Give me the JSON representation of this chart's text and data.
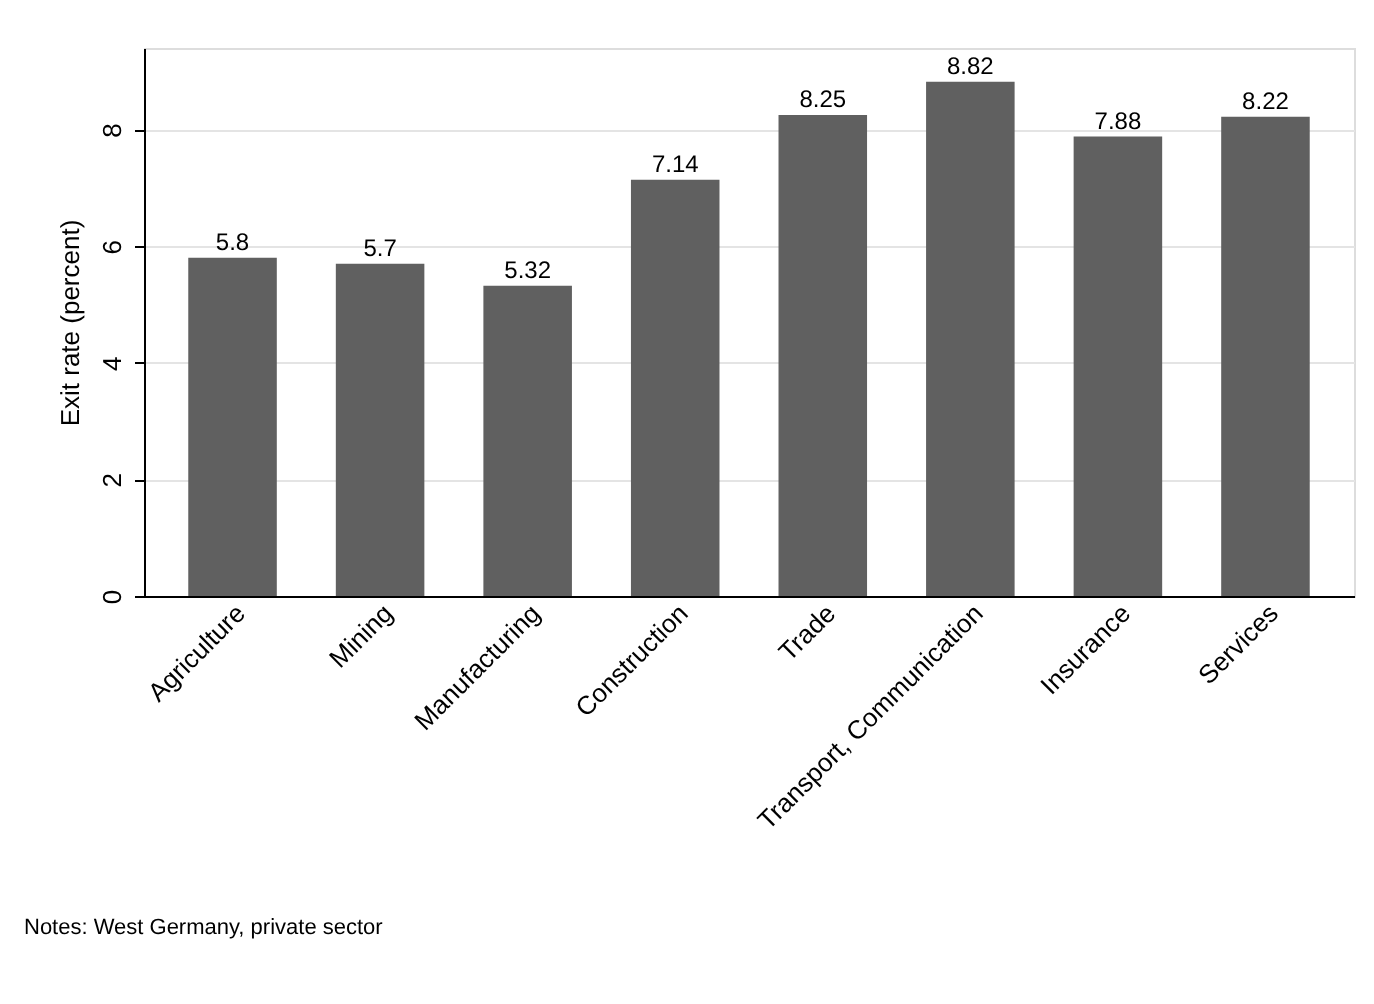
{
  "chart_data": {
    "type": "bar",
    "ylabel": "Exit rate (percent)",
    "categories": [
      "Agriculture",
      "Mining",
      "Manufacturing",
      "Construction",
      "Trade",
      "Transport, Communication",
      "Insurance",
      "Services"
    ],
    "values": [
      5.8,
      5.7,
      5.32,
      7.14,
      8.25,
      8.82,
      7.88,
      8.22
    ],
    "color": "#606060",
    "ylim": [
      0,
      9.4
    ],
    "yticks": [
      0,
      2,
      4,
      6,
      8
    ],
    "grid": "y",
    "data_labels": true,
    "annotations": [
      "Notes: West Germany, private sector"
    ]
  }
}
